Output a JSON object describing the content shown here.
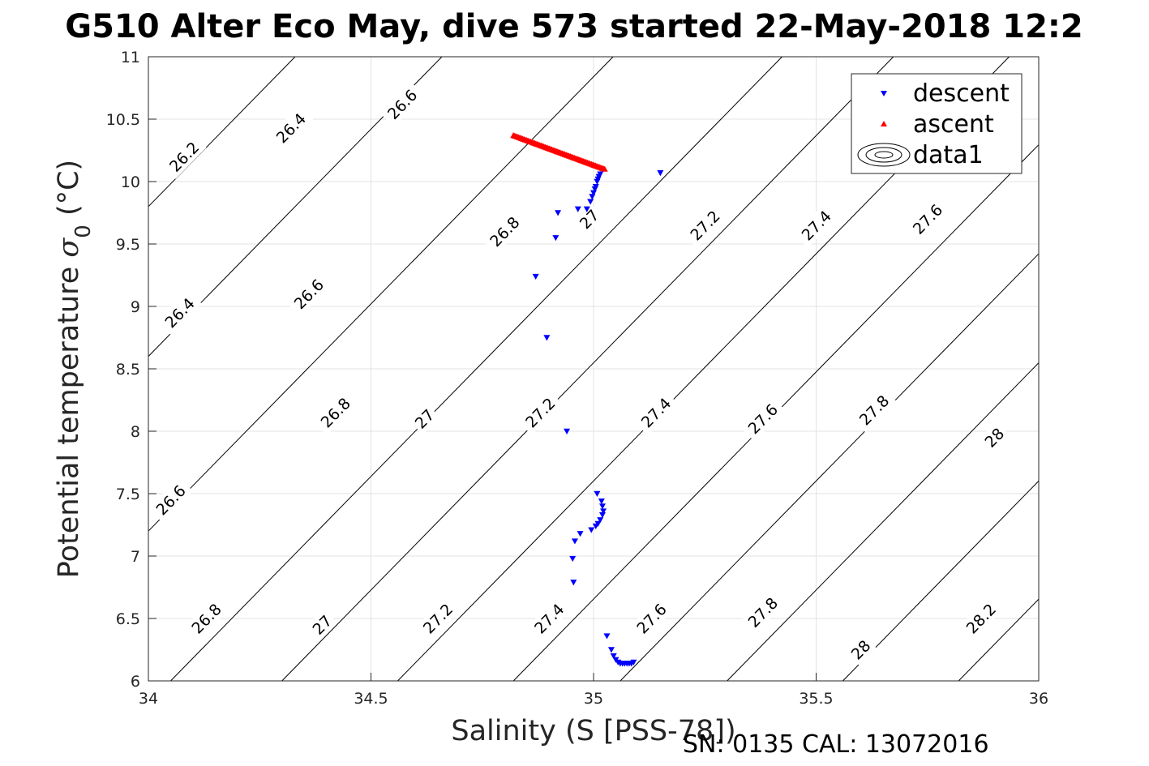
{
  "chart_data": {
    "type": "scatter",
    "title": "G510 Alter Eco May, dive 573 started 22-May-2018 12:2",
    "xlabel": "Salinity (S [PSS-78])",
    "ylabel": "Potential temperature σ₀ (°C)",
    "xlim": [
      34,
      36
    ],
    "ylim": [
      6,
      11
    ],
    "xticks": [
      "34",
      "34.5",
      "35",
      "35.5",
      "36"
    ],
    "yticks": [
      "6",
      "6.5",
      "7",
      "7.5",
      "8",
      "8.5",
      "9",
      "9.5",
      "10",
      "10.5",
      "11"
    ],
    "grid": true,
    "legend_position": "top-right",
    "legend": [
      "descent",
      "ascent",
      "data1"
    ],
    "footer_text": "SN: 0135  CAL: 13072016",
    "series": [
      {
        "name": "descent",
        "marker": "triangle-down",
        "color": "#0000ff",
        "points": [
          [
            35.15,
            10.07
          ],
          [
            35.015,
            10.06
          ],
          [
            35.012,
            10.04
          ],
          [
            35.01,
            10.02
          ],
          [
            35.008,
            10.0
          ],
          [
            35.005,
            9.96
          ],
          [
            35.003,
            9.94
          ],
          [
            35.0,
            9.91
          ],
          [
            34.997,
            9.88
          ],
          [
            34.993,
            9.84
          ],
          [
            34.985,
            9.78
          ],
          [
            34.965,
            9.78
          ],
          [
            34.92,
            9.75
          ],
          [
            34.915,
            9.55
          ],
          [
            34.87,
            9.24
          ],
          [
            34.895,
            8.75
          ],
          [
            34.94,
            8.0
          ],
          [
            35.008,
            7.5
          ],
          [
            35.018,
            7.44
          ],
          [
            35.02,
            7.4
          ],
          [
            35.022,
            7.36
          ],
          [
            35.02,
            7.33
          ],
          [
            35.015,
            7.29
          ],
          [
            35.01,
            7.26
          ],
          [
            35.005,
            7.24
          ],
          [
            34.995,
            7.21
          ],
          [
            34.97,
            7.18
          ],
          [
            34.958,
            7.12
          ],
          [
            34.953,
            6.98
          ],
          [
            34.955,
            6.79
          ],
          [
            35.03,
            6.36
          ],
          [
            35.04,
            6.25
          ],
          [
            35.045,
            6.2
          ],
          [
            35.05,
            6.17
          ],
          [
            35.055,
            6.15
          ],
          [
            35.06,
            6.14
          ],
          [
            35.065,
            6.14
          ],
          [
            35.07,
            6.14
          ],
          [
            35.075,
            6.14
          ],
          [
            35.08,
            6.14
          ],
          [
            35.085,
            6.14
          ],
          [
            35.09,
            6.15
          ]
        ]
      },
      {
        "name": "ascent",
        "marker": "triangle-up",
        "color": "#ff0000",
        "start": [
          34.82,
          10.37
        ],
        "end": [
          35.025,
          10.1
        ],
        "count": 70
      }
    ],
    "contours": {
      "name": "data1",
      "color": "#000000",
      "lines": [
        {
          "level": "26.2",
          "x0": 34.0,
          "y0": 9.8,
          "labels": [
            [
              34.08,
              10.2
            ]
          ]
        },
        {
          "level": "26.4",
          "x0": 34.0,
          "y0": 8.6,
          "labels": [
            [
              34.32,
              10.43
            ],
            [
              34.07,
              8.95
            ]
          ]
        },
        {
          "level": "26.6",
          "x0": 34.0,
          "y0": 7.2,
          "labels": [
            [
              34.57,
              10.62
            ],
            [
              34.36,
              9.1
            ],
            [
              34.05,
              7.45
            ]
          ]
        },
        {
          "level": "26.8",
          "x0": 34.05,
          "y0": 6.0,
          "labels": [
            [
              34.8,
              9.6
            ],
            [
              34.42,
              8.15
            ],
            [
              34.13,
              6.5
            ]
          ]
        },
        {
          "level": "27",
          "x0": 34.3,
          "y0": 6.0,
          "labels": [
            [
              34.99,
              9.7
            ],
            [
              34.62,
              8.1
            ],
            [
              34.39,
              6.45
            ]
          ]
        },
        {
          "level": "27.2",
          "x0": 34.56,
          "y0": 6.0,
          "labels": [
            [
              35.25,
              9.65
            ],
            [
              34.88,
              8.15
            ],
            [
              34.65,
              6.5
            ]
          ]
        },
        {
          "level": "27.4",
          "x0": 34.82,
          "y0": 6.0,
          "labels": [
            [
              35.5,
              9.65
            ],
            [
              35.14,
              8.15
            ],
            [
              34.9,
              6.5
            ]
          ]
        },
        {
          "level": "27.6",
          "x0": 35.06,
          "y0": 6.0,
          "labels": [
            [
              35.75,
              9.7
            ],
            [
              35.38,
              8.1
            ],
            [
              35.13,
              6.5
            ]
          ]
        },
        {
          "level": "27.8",
          "x0": 35.3,
          "y0": 6.0,
          "labels": [
            [
              35.63,
              8.17
            ],
            [
              35.38,
              6.55
            ]
          ]
        },
        {
          "level": "28",
          "x0": 35.56,
          "y0": 6.0,
          "labels": [
            [
              35.9,
              7.95
            ],
            [
              35.6,
              6.25
            ]
          ]
        },
        {
          "level": "28.2",
          "x0": 35.82,
          "y0": 6.0,
          "labels": [
            [
              35.87,
              6.5
            ]
          ]
        }
      ]
    }
  }
}
